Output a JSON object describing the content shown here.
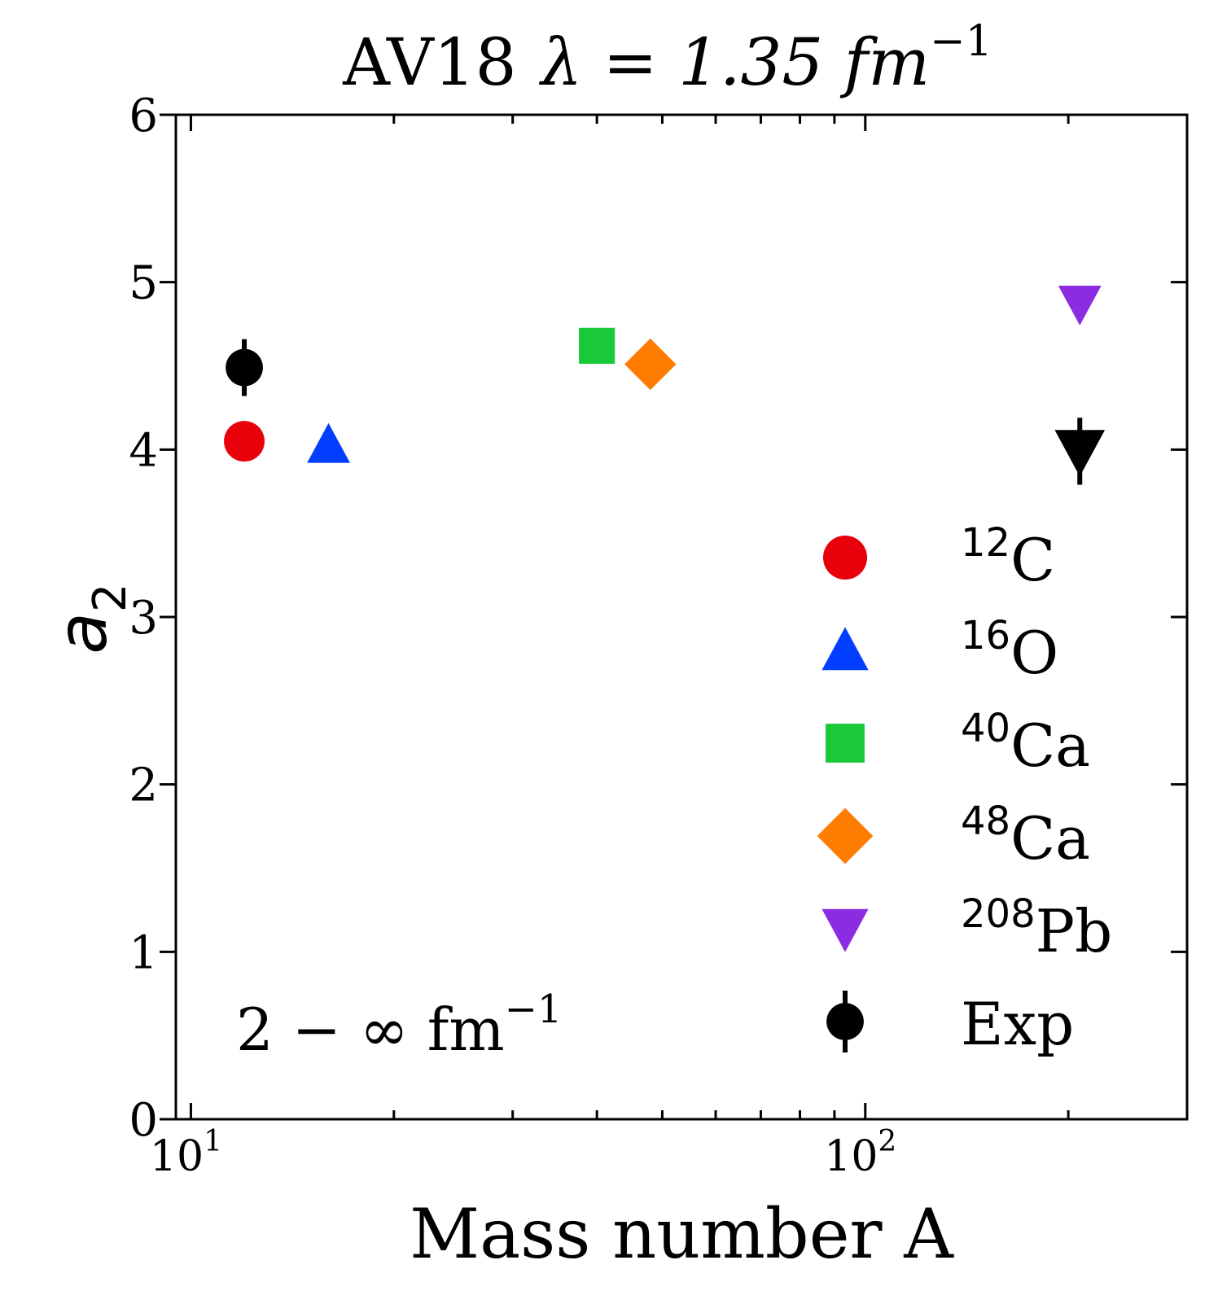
{
  "chart_data": {
    "type": "scatter",
    "title_prefix": "AV18",
    "title_lambda": "λ = 1.35 fm",
    "title_sup": "−1",
    "xlabel": "Mass number A",
    "ylabel_base": "a",
    "ylabel_sub": "2",
    "xscale": "log",
    "xlim": [
      9.5,
      300
    ],
    "ylim": [
      0,
      6
    ],
    "yticks": [
      "0",
      "1",
      "2",
      "3",
      "4",
      "5",
      "6"
    ],
    "xticks_major": [
      {
        "base": "10",
        "exp": "1",
        "value": 10
      },
      {
        "base": "10",
        "exp": "2",
        "value": 100
      }
    ],
    "annotation_main": "2 − ∞ fm",
    "annotation_sup": "−1",
    "legend_position": "right",
    "series": [
      {
        "name": "C",
        "mass": "12",
        "marker": "circle",
        "color": "#e8000b",
        "x": 12,
        "y": 4.05
      },
      {
        "name": "O",
        "mass": "16",
        "marker": "triangle-up",
        "color": "#023eff",
        "x": 16,
        "y": 4.03
      },
      {
        "name": "Ca",
        "mass": "40",
        "marker": "square",
        "color": "#1ac938",
        "x": 40,
        "y": 4.62
      },
      {
        "name": "Ca",
        "mass": "48",
        "marker": "diamond",
        "color": "#ff7c00",
        "x": 48,
        "y": 4.51
      },
      {
        "name": "Pb",
        "mass": "208",
        "marker": "triangle-down",
        "color": "#8b2be2",
        "x": 208,
        "y": 4.87
      }
    ],
    "experiment": {
      "name": "Exp",
      "color": "#000000",
      "points": [
        {
          "marker": "circle",
          "x": 12,
          "y": 4.49,
          "err": 0.17
        },
        {
          "marker": "triangle-down",
          "x": 208,
          "y": 3.99,
          "err": 0.2
        }
      ]
    }
  }
}
